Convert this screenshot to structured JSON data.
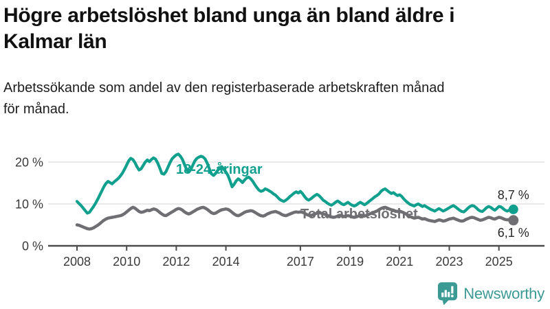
{
  "header": {
    "title_line1": "Högre arbetslöshet bland unga än bland äldre i",
    "title_line2": "Kalmar län",
    "subtitle_line1": "Arbetssökande som andel av den registerbaserade arbetskraften månad",
    "subtitle_line2": "för månad."
  },
  "logo": {
    "text": "Newsworthy",
    "color": "#3b9a94",
    "icon": "newsworthy-speech-bubble-bar-chart-icon"
  },
  "chart_data": {
    "type": "line",
    "unit": "%",
    "x_interval": "monthly",
    "x_start_year": 2008,
    "x_end": "2025-08",
    "xlim": [
      2007.9,
      2026
    ],
    "ylim": [
      0,
      23
    ],
    "grid": "horizontal",
    "x_ticks": [
      2008,
      2010,
      2012,
      2014,
      2017,
      2019,
      2021,
      2023,
      2025
    ],
    "y_ticks": [
      {
        "value": 0,
        "label": "0 %"
      },
      {
        "value": 10,
        "label": "10 %"
      },
      {
        "value": 20,
        "label": "20 %"
      }
    ],
    "colors": {
      "grid": "#dcdcdc",
      "axis": "#4b4b4b"
    },
    "series": [
      {
        "name": "18-24-åringar",
        "color": "#12a08e",
        "end_label": "8,7 %",
        "end_value": 8.7,
        "values": [
          10.6,
          10.1,
          9.6,
          9.0,
          8.4,
          7.8,
          8.0,
          8.7,
          9.4,
          10.2,
          11.1,
          12.1,
          13.1,
          14.1,
          14.9,
          15.4,
          15.1,
          14.8,
          15.3,
          15.7,
          16.1,
          16.7,
          17.4,
          18.3,
          19.3,
          20.3,
          20.9,
          20.6,
          19.9,
          18.9,
          18.1,
          18.4,
          19.2,
          20.0,
          20.5,
          20.1,
          20.6,
          21.0,
          20.7,
          19.8,
          18.6,
          17.3,
          17.1,
          17.7,
          18.8,
          19.9,
          20.8,
          21.3,
          21.7,
          21.9,
          21.4,
          20.6,
          19.4,
          18.2,
          17.6,
          18.2,
          19.3,
          20.3,
          20.9,
          21.2,
          21.4,
          21.2,
          20.7,
          19.7,
          18.4,
          17.2,
          16.8,
          17.3,
          18.0,
          18.6,
          18.9,
          18.3,
          17.6,
          16.8,
          15.5,
          14.1,
          14.7,
          15.5,
          16.0,
          15.6,
          15.1,
          15.7,
          16.2,
          16.4,
          16.0,
          15.4,
          14.6,
          13.9,
          13.3,
          13.0,
          13.2,
          13.6,
          13.4,
          13.1,
          12.8,
          12.4,
          12.1,
          11.6,
          11.1,
          10.8,
          10.6,
          10.9,
          11.3,
          11.8,
          12.2,
          12.6,
          12.9,
          12.6,
          13.0,
          12.5,
          11.8,
          11.2,
          10.9,
          11.2,
          11.6,
          12.0,
          12.3,
          12.0,
          11.5,
          10.9,
          10.6,
          10.2,
          9.9,
          9.7,
          10.0,
          10.4,
          10.7,
          10.4,
          10.0,
          9.8,
          10.1,
          10.4,
          10.0,
          9.7,
          9.5,
          9.7,
          10.1,
          10.4,
          10.1,
          9.8,
          10.1,
          10.5,
          10.9,
          11.3,
          11.7,
          12.0,
          12.4,
          13.0,
          13.4,
          13.6,
          13.2,
          12.8,
          12.5,
          12.7,
          12.3,
          12.0,
          12.2,
          11.8,
          11.2,
          10.7,
          10.3,
          9.9,
          9.7,
          9.5,
          9.8,
          10.0,
          9.7,
          9.4,
          9.6,
          9.3,
          9.0,
          8.7,
          8.5,
          8.3,
          8.6,
          8.9,
          8.6,
          8.3,
          8.5,
          8.8,
          9.1,
          9.4,
          9.6,
          9.3,
          8.9,
          8.5,
          8.2,
          8.1,
          8.5,
          9.0,
          9.4,
          9.6,
          9.5,
          9.1,
          8.6,
          8.3,
          8.2,
          8.6,
          9.1,
          9.4,
          9.2,
          8.8,
          8.5,
          8.9,
          9.4,
          9.3,
          8.9,
          8.5,
          8.3,
          8.5,
          8.8,
          8.7
        ]
      },
      {
        "name": "Total arbetslöshet",
        "color": "#6f6f73",
        "end_label": "6,1 %",
        "end_value": 6.1,
        "values": [
          5.0,
          4.9,
          4.7,
          4.5,
          4.3,
          4.1,
          4.0,
          4.1,
          4.3,
          4.6,
          4.9,
          5.3,
          5.7,
          6.1,
          6.4,
          6.6,
          6.7,
          6.8,
          6.9,
          7.0,
          7.1,
          7.2,
          7.4,
          7.7,
          8.1,
          8.5,
          8.9,
          9.2,
          9.0,
          8.6,
          8.2,
          8.0,
          8.1,
          8.3,
          8.5,
          8.4,
          8.6,
          8.8,
          8.7,
          8.4,
          8.0,
          7.6,
          7.3,
          7.2,
          7.5,
          7.8,
          8.1,
          8.4,
          8.7,
          8.9,
          8.8,
          8.5,
          8.1,
          7.8,
          7.6,
          7.8,
          8.1,
          8.4,
          8.7,
          8.9,
          9.1,
          9.2,
          9.0,
          8.7,
          8.3,
          7.9,
          7.7,
          7.8,
          8.1,
          8.4,
          8.6,
          8.7,
          8.8,
          8.7,
          8.4,
          8.0,
          7.6,
          7.3,
          7.2,
          7.4,
          7.7,
          8.0,
          8.2,
          8.3,
          8.4,
          8.3,
          8.0,
          7.7,
          7.4,
          7.2,
          7.1,
          7.3,
          7.6,
          7.8,
          8.0,
          8.1,
          8.2,
          8.0,
          7.8,
          7.5,
          7.3,
          7.2,
          7.4,
          7.6,
          7.8,
          8.0,
          8.1,
          8.0,
          8.1,
          8.0,
          7.8,
          7.5,
          7.3,
          7.2,
          7.4,
          7.6,
          7.8,
          7.9,
          7.8,
          7.6,
          7.5,
          7.3,
          7.1,
          6.9,
          6.8,
          6.9,
          7.1,
          7.3,
          7.2,
          7.0,
          7.1,
          7.2,
          7.1,
          6.9,
          6.8,
          6.9,
          7.1,
          7.3,
          7.2,
          7.1,
          7.3,
          7.5,
          7.7,
          7.9,
          8.1,
          8.3,
          8.6,
          8.9,
          9.1,
          9.2,
          9.0,
          8.8,
          8.6,
          8.5,
          8.3,
          8.2,
          8.3,
          8.1,
          7.9,
          7.6,
          7.3,
          7.0,
          6.8,
          6.6,
          6.7,
          6.8,
          6.6,
          6.4,
          6.5,
          6.3,
          6.1,
          6.0,
          5.9,
          5.8,
          6.0,
          6.2,
          6.1,
          5.9,
          6.0,
          6.2,
          6.4,
          6.5,
          6.6,
          6.4,
          6.2,
          6.0,
          5.9,
          6.0,
          6.3,
          6.5,
          6.7,
          6.8,
          6.7,
          6.5,
          6.3,
          6.1,
          6.2,
          6.4,
          6.6,
          6.8,
          6.7,
          6.5,
          6.4,
          6.6,
          6.8,
          6.7,
          6.5,
          6.3,
          6.2,
          6.3,
          6.2,
          6.1
        ]
      }
    ]
  }
}
